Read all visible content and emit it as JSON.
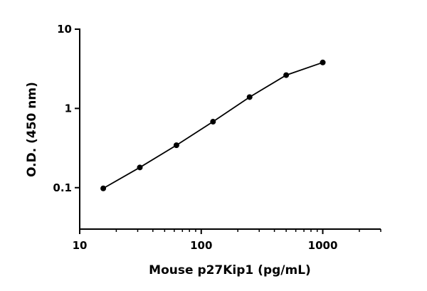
{
  "chart_data": {
    "type": "scatter",
    "x_label": "Mouse p27Kip1 (pg/mL)",
    "y_label": "O.D. (450 nm)",
    "x": [
      15.625,
      31.25,
      62.5,
      125,
      250,
      500,
      1000
    ],
    "values": [
      0.098,
      0.18,
      0.343,
      0.68,
      1.39,
      2.63,
      3.8
    ],
    "color": "#000000",
    "x_log": true,
    "y_log": true,
    "xlim": [
      10,
      3000
    ],
    "ylim": [
      0.03,
      10
    ],
    "xticks": [
      10,
      100,
      1000
    ],
    "xminorticks": [
      20,
      30,
      40,
      50,
      60,
      70,
      80,
      90,
      200,
      300,
      400,
      500,
      600,
      700,
      800,
      900,
      2000,
      3000
    ],
    "yticks": [
      0.1,
      1,
      10
    ],
    "fit_line": true
  }
}
